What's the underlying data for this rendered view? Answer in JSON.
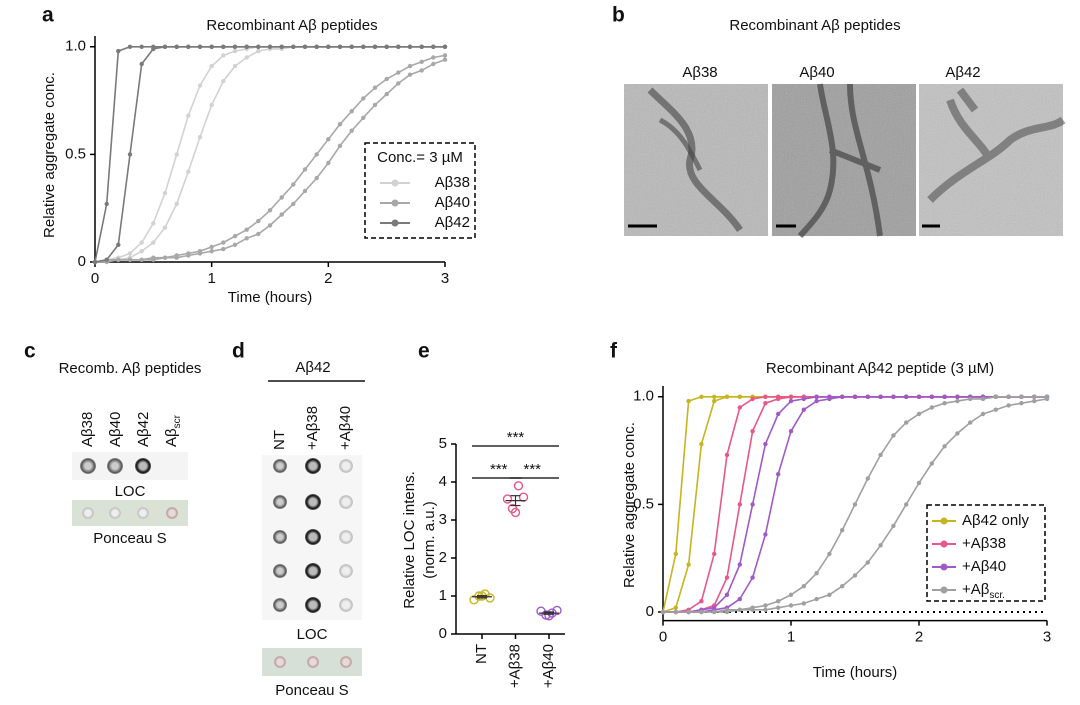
{
  "panel_labels": [
    "a",
    "b",
    "c",
    "d",
    "e",
    "f"
  ],
  "chart_data": [
    {
      "type": "line",
      "title": "Recombinant Aβ peptides",
      "xlabel": "Time (hours)",
      "ylabel": "Relative aggregate conc.",
      "legend_title": "Conc.= 3 µM",
      "x": [
        0,
        0.1,
        0.2,
        0.3,
        0.4,
        0.5,
        0.6,
        0.7,
        0.8,
        0.9,
        1,
        1.1,
        1.2,
        1.3,
        1.4,
        1.5,
        1.6,
        1.7,
        1.8,
        1.9,
        2,
        2.1,
        2.2,
        2.3,
        2.4,
        2.5,
        2.6,
        2.7,
        2.8,
        2.9,
        3
      ],
      "xlim": [
        0,
        3
      ],
      "xticks": [
        0,
        1,
        2,
        3
      ],
      "ylim": [
        0,
        1.05
      ],
      "yticks": [
        0,
        0.5,
        {
          "value": 1,
          "label": "1.0"
        }
      ],
      "series": [
        {
          "name": "Aβ38",
          "color": "#d2d2d2",
          "values": [
            [
              0,
              0.01,
              0.02,
              0.04,
              0.09,
              0.18,
              0.32,
              0.5,
              0.68,
              0.82,
              0.91,
              0.96,
              0.98,
              0.99,
              1,
              1,
              1,
              1,
              1,
              1,
              1,
              1,
              1,
              1,
              1,
              1,
              1,
              1,
              1,
              1,
              1
            ],
            [
              0,
              0.01,
              0.01,
              0.02,
              0.05,
              0.09,
              0.16,
              0.27,
              0.42,
              0.58,
              0.73,
              0.84,
              0.91,
              0.95,
              0.98,
              0.99,
              0.99,
              1,
              1,
              1,
              1,
              1,
              1,
              1,
              1,
              1,
              1,
              1,
              1,
              1,
              1
            ]
          ]
        },
        {
          "name": "Aβ40",
          "color": "#a8a8a8",
          "values": [
            [
              0,
              0.01,
              0.01,
              0.01,
              0.01,
              0.02,
              0.02,
              0.03,
              0.04,
              0.05,
              0.07,
              0.09,
              0.12,
              0.15,
              0.19,
              0.24,
              0.3,
              0.36,
              0.43,
              0.5,
              0.57,
              0.64,
              0.7,
              0.76,
              0.81,
              0.85,
              0.88,
              0.91,
              0.93,
              0.95,
              0.96
            ],
            [
              0,
              0,
              0.01,
              0.01,
              0.01,
              0.01,
              0.02,
              0.02,
              0.03,
              0.04,
              0.05,
              0.06,
              0.08,
              0.11,
              0.13,
              0.17,
              0.22,
              0.27,
              0.33,
              0.39,
              0.46,
              0.54,
              0.61,
              0.67,
              0.73,
              0.78,
              0.83,
              0.87,
              0.89,
              0.92,
              0.94
            ]
          ]
        },
        {
          "name": "Aβ42",
          "color": "#7a7a7a",
          "values": [
            [
              0,
              0.27,
              0.98,
              1,
              1,
              1,
              1,
              1,
              1,
              1,
              1,
              1,
              1,
              1,
              1,
              1,
              1,
              1,
              1,
              1,
              1,
              1,
              1,
              1,
              1,
              1,
              1,
              1,
              1,
              1,
              1
            ],
            [
              0,
              0.01,
              0.08,
              0.5,
              0.92,
              0.99,
              1,
              1,
              1,
              1,
              1,
              1,
              1,
              1,
              1,
              1,
              1,
              1,
              1,
              1,
              1,
              1,
              1,
              1,
              1,
              1,
              1,
              1,
              1,
              1,
              1
            ]
          ]
        }
      ]
    },
    {
      "type": "dot",
      "categories": [
        "NT",
        "+Aβ38",
        "+Aβ40"
      ],
      "colors": [
        "#c8b420",
        "#e8578a",
        "#a05ac8"
      ],
      "ylabel": [
        "Relative LOC intens.",
        "(norm. a.u.)"
      ],
      "ylim": [
        0,
        5
      ],
      "yticks": [
        0,
        1,
        2,
        3,
        4,
        5
      ],
      "values": [
        [
          0.9,
          1,
          1.05,
          0.95,
          1
        ],
        [
          3.55,
          3.3,
          3.9,
          3.6,
          3.2
        ],
        [
          0.6,
          0.5,
          0.55,
          0.62,
          0.48
        ]
      ],
      "means": [
        0.98,
        3.51,
        0.55
      ],
      "errors": [
        0.03,
        0.13,
        0.03
      ],
      "significance": [
        "***",
        "***",
        "***"
      ]
    },
    {
      "type": "line",
      "title": "Recombinant Aβ42 peptide (3 µM)",
      "xlabel": "Time (hours)",
      "ylabel": "Relative aggregate conc.",
      "x": [
        0,
        0.1,
        0.2,
        0.3,
        0.4,
        0.5,
        0.6,
        0.7,
        0.8,
        0.9,
        1,
        1.1,
        1.2,
        1.3,
        1.4,
        1.5,
        1.6,
        1.7,
        1.8,
        1.9,
        2,
        2.1,
        2.2,
        2.3,
        2.4,
        2.5,
        2.6,
        2.7,
        2.8,
        2.9,
        3
      ],
      "xlim": [
        0,
        3
      ],
      "xticks": [
        0,
        1,
        2,
        3
      ],
      "ylim": [
        -0.04,
        1.05
      ],
      "yticks": [
        0,
        0.5,
        {
          "value": 1,
          "label": "1.0"
        }
      ],
      "series": [
        {
          "name": "Aβ42 only",
          "color": "#c8b420",
          "values": [
            [
              0,
              0.27,
              0.98,
              1,
              1,
              1,
              1,
              1,
              1,
              1,
              1,
              1,
              1,
              1,
              1,
              1,
              1,
              1,
              1,
              1,
              1,
              1,
              1,
              1,
              1,
              1,
              1,
              1,
              1,
              1,
              1
            ],
            [
              0,
              0.02,
              0.22,
              0.78,
              0.98,
              1,
              1,
              1,
              1,
              1,
              1,
              1,
              1,
              1,
              1,
              1,
              1,
              1,
              1,
              1,
              1,
              1,
              1,
              1,
              1,
              1,
              1,
              1,
              1,
              1,
              1
            ]
          ]
        },
        {
          "name": "+Aβ38",
          "color": "#e8578a",
          "values": [
            [
              0,
              0,
              0.01,
              0.05,
              0.27,
              0.73,
              0.95,
              0.99,
              1,
              1,
              1,
              1,
              1,
              1,
              1,
              1,
              1,
              1,
              1,
              1,
              1,
              1,
              1,
              1,
              1,
              1,
              1,
              1,
              1,
              1,
              1
            ],
            [
              0,
              0,
              0,
              0.01,
              0.03,
              0.16,
              0.5,
              0.84,
              0.97,
              0.99,
              1,
              1,
              1,
              1,
              1,
              1,
              1,
              1,
              1,
              1,
              1,
              1,
              1,
              1,
              1,
              1,
              1,
              1,
              1,
              1,
              1
            ]
          ]
        },
        {
          "name": "+Aβ40",
          "color": "#a05ac8",
          "values": [
            [
              0,
              0,
              0,
              0.01,
              0.02,
              0.08,
              0.22,
              0.5,
              0.78,
              0.92,
              0.98,
              0.99,
              1,
              1,
              1,
              1,
              1,
              1,
              1,
              1,
              1,
              1,
              1,
              1,
              1,
              1,
              1,
              1,
              1,
              1,
              1
            ],
            [
              0,
              0,
              0,
              0,
              0.01,
              0.02,
              0.06,
              0.16,
              0.36,
              0.64,
              0.84,
              0.94,
              0.98,
              0.99,
              1,
              1,
              1,
              1,
              1,
              1,
              1,
              1,
              1,
              1,
              1,
              1,
              1,
              1,
              1,
              1,
              1
            ]
          ]
        },
        {
          "name": "+Aβ",
          "name_sub": "scr.",
          "color": "#a0a0a0",
          "values": [
            [
              0,
              0,
              0,
              0,
              0,
              0.01,
              0.01,
              0.02,
              0.03,
              0.05,
              0.08,
              0.12,
              0.18,
              0.27,
              0.38,
              0.5,
              0.62,
              0.73,
              0.82,
              0.88,
              0.92,
              0.95,
              0.97,
              0.98,
              0.99,
              0.99,
              1,
              1,
              1,
              1,
              1
            ],
            [
              0,
              0,
              0,
              0,
              0,
              0,
              0.01,
              0.01,
              0.01,
              0.02,
              0.03,
              0.04,
              0.06,
              0.08,
              0.12,
              0.17,
              0.23,
              0.31,
              0.4,
              0.5,
              0.6,
              0.69,
              0.77,
              0.83,
              0.88,
              0.92,
              0.94,
              0.96,
              0.97,
              0.98,
              0.99
            ]
          ]
        }
      ]
    }
  ],
  "panel_b": {
    "title": "Recombinant Aβ peptides",
    "images": [
      "Aβ38",
      "Aβ40",
      "Aβ42"
    ]
  },
  "panel_c": {
    "title": "Recomb. Aβ peptides",
    "lanes": [
      "Aβ38",
      "Aβ40",
      "Aβ42",
      {
        "text": "Aβ",
        "sub": "scr"
      }
    ],
    "blot_label": "LOC",
    "stain_label": "Ponceau S"
  },
  "panel_d": {
    "title": "Aβ42",
    "lanes": [
      "NT",
      "+Aβ38",
      "+Aβ40"
    ],
    "blot_label": "LOC",
    "stain_label": "Ponceau S"
  }
}
